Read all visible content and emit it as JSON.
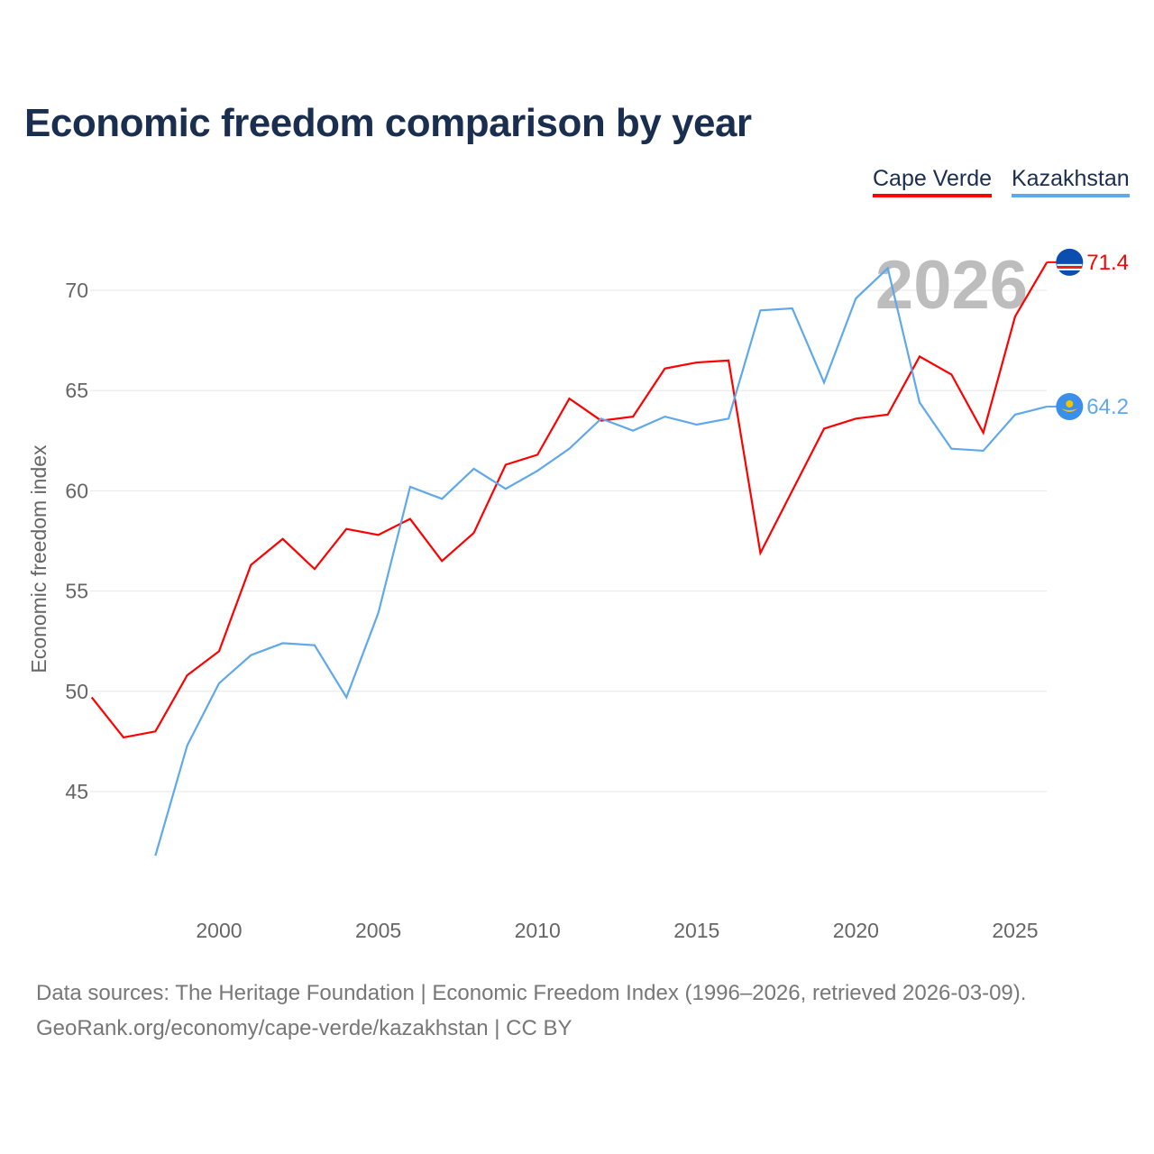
{
  "title": "Economic freedom comparison by year",
  "footer": {
    "line1": "Data sources: The Heritage Foundation | Economic Freedom Index (1996–2026, retrieved 2026-03-09).",
    "line2": "GeoRank.org/economy/cape-verde/kazakhstan | CC BY"
  },
  "chart_data": {
    "type": "line",
    "title": "Economic freedom comparison by year",
    "ylabel": "Economic freedom index",
    "xlabel": "",
    "year_watermark": "2026",
    "xlim": [
      1996,
      2026
    ],
    "ylim": [
      40,
      73
    ],
    "xticks": [
      2000,
      2005,
      2010,
      2015,
      2020,
      2025
    ],
    "yticks": [
      45,
      50,
      55,
      60,
      65,
      70
    ],
    "grid": true,
    "legend_position": "top-right",
    "series": [
      {
        "name": "Cape Verde",
        "color": "#ff0000",
        "end_label": "71.4",
        "flag": "cape-verde-flag-icon",
        "x": [
          1996,
          1997,
          1998,
          1999,
          2000,
          2001,
          2002,
          2003,
          2004,
          2005,
          2006,
          2007,
          2008,
          2009,
          2010,
          2011,
          2012,
          2013,
          2014,
          2015,
          2016,
          2017,
          2018,
          2019,
          2020,
          2021,
          2022,
          2023,
          2024,
          2025,
          2026
        ],
        "values": [
          49.7,
          47.7,
          48.0,
          50.8,
          52.0,
          56.3,
          57.6,
          56.1,
          58.1,
          57.8,
          58.6,
          56.5,
          57.9,
          61.3,
          61.8,
          64.6,
          63.5,
          63.7,
          66.1,
          66.4,
          66.5,
          56.9,
          60.0,
          63.1,
          63.6,
          63.8,
          66.7,
          65.8,
          62.9,
          68.7,
          71.4
        ]
      },
      {
        "name": "Kazakhstan",
        "color": "#5fa8ec",
        "end_label": "64.2",
        "flag": "kazakhstan-flag-icon",
        "x": [
          1998,
          1999,
          2000,
          2001,
          2002,
          2003,
          2004,
          2005,
          2006,
          2007,
          2008,
          2009,
          2010,
          2011,
          2012,
          2013,
          2014,
          2015,
          2016,
          2017,
          2018,
          2019,
          2020,
          2021,
          2022,
          2023,
          2024,
          2025,
          2026
        ],
        "values": [
          41.8,
          47.3,
          50.4,
          51.8,
          52.4,
          52.3,
          49.7,
          53.9,
          60.2,
          59.6,
          61.1,
          60.1,
          61.0,
          62.1,
          63.6,
          63.0,
          63.7,
          63.3,
          63.6,
          69.0,
          69.1,
          65.4,
          69.6,
          71.1,
          64.4,
          62.1,
          62.0,
          63.8,
          64.2
        ]
      }
    ]
  }
}
